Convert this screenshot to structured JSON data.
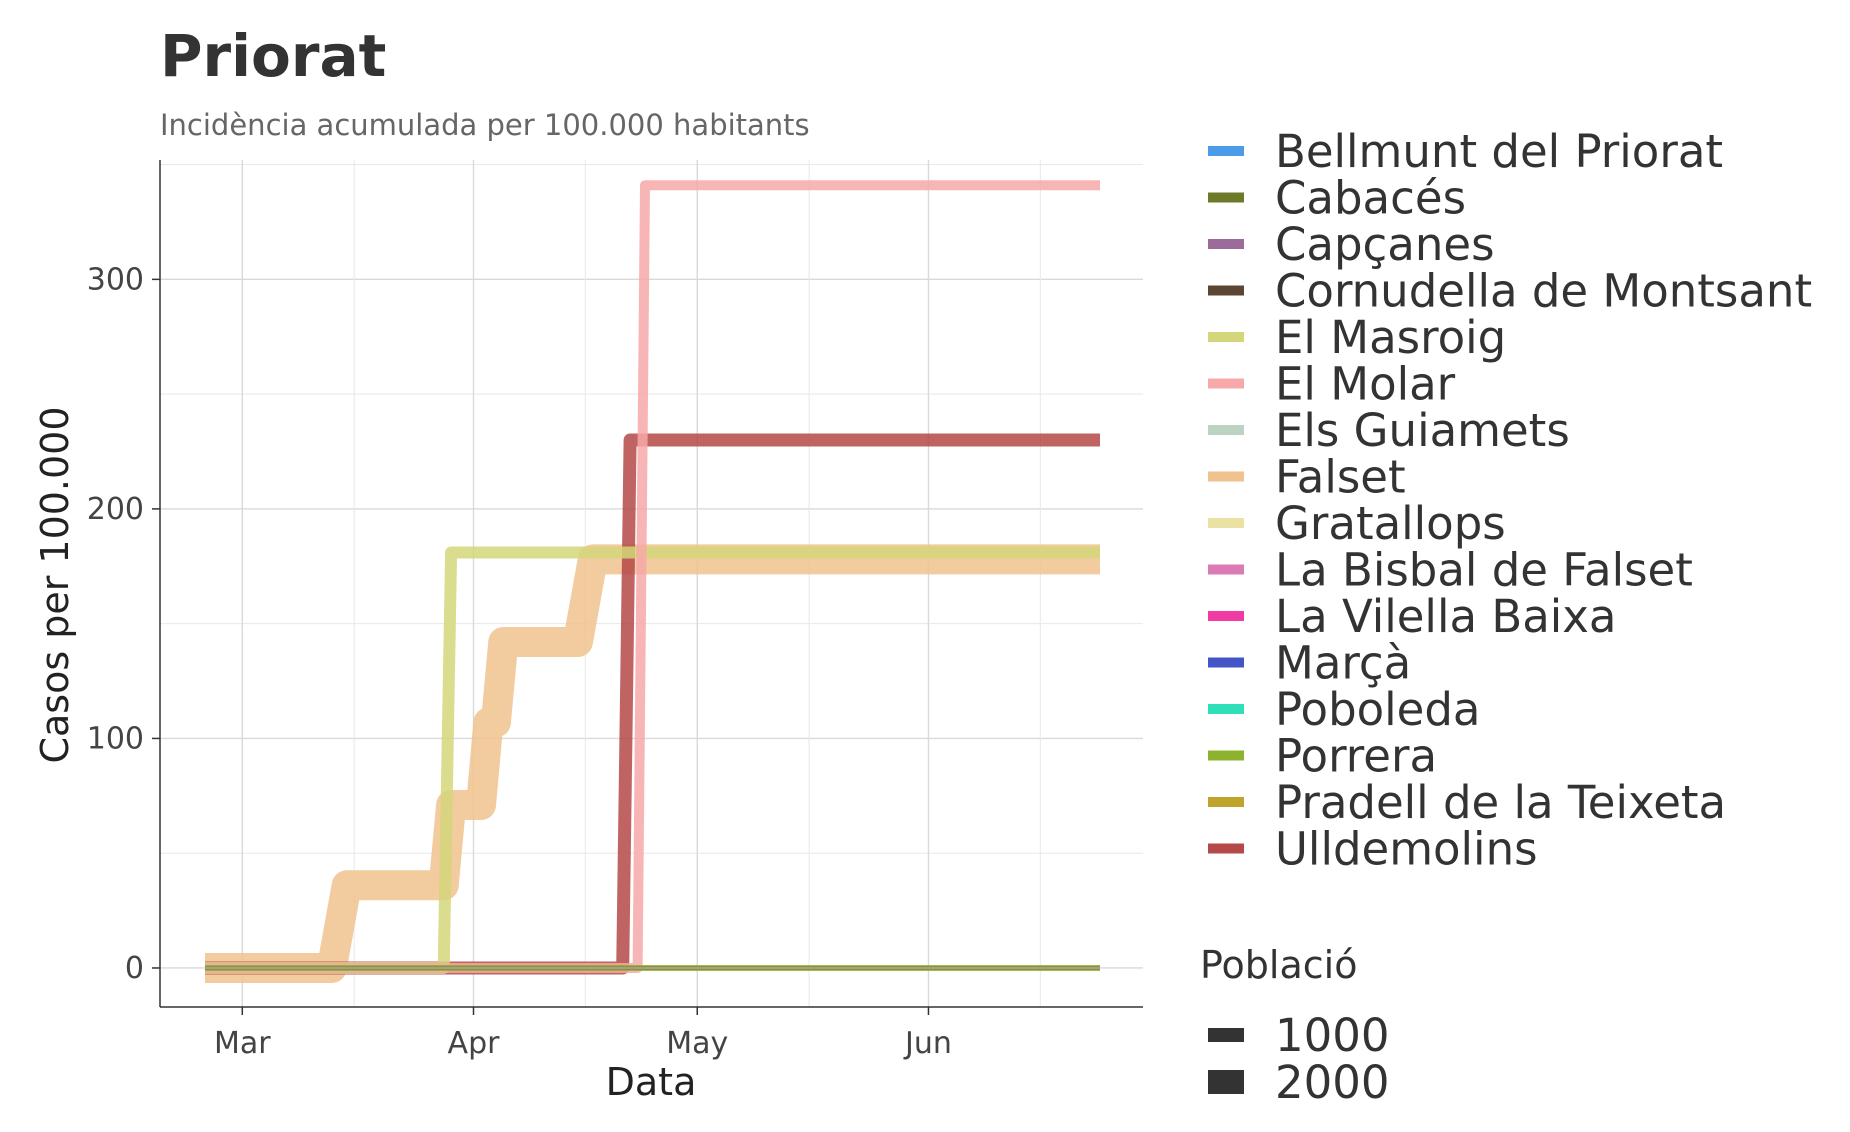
{
  "title": "Priorat",
  "subtitle": "Incidència acumulada per 100.000 habitants",
  "chart_data": {
    "type": "line",
    "title": "Priorat",
    "subtitle": "Incidència acumulada per 100.000 habitants",
    "xlabel": "Data",
    "ylabel": "Casos per 100.000",
    "x_date_range": [
      "2020-02-25",
      "2020-06-24"
    ],
    "x_ticks": [
      {
        "date": "2020-03-01",
        "label": "Mar"
      },
      {
        "date": "2020-04-01",
        "label": "Apr"
      },
      {
        "date": "2020-05-01",
        "label": "May"
      },
      {
        "date": "2020-06-01",
        "label": "Jun"
      }
    ],
    "ylim": [
      -17,
      352
    ],
    "y_ticks": [
      0,
      100,
      200,
      300
    ],
    "grid": true,
    "legend_position": "right",
    "size_legend": {
      "title": "Població",
      "entries": [
        "1000",
        "2000"
      ]
    },
    "series": [
      {
        "name": "Bellmunt del Priorat",
        "color": "#4C9BE8",
        "width": 3,
        "points": [
          [
            "2020-02-25",
            0
          ],
          [
            "2020-06-24",
            0
          ]
        ]
      },
      {
        "name": "Cabacés",
        "color": "#6E7A2A",
        "width": 3,
        "points": [
          [
            "2020-02-25",
            0
          ],
          [
            "2020-06-24",
            0
          ]
        ]
      },
      {
        "name": "Capçanes",
        "color": "#9B6B9A",
        "width": 3,
        "points": [
          [
            "2020-02-25",
            0
          ],
          [
            "2020-06-24",
            0
          ]
        ]
      },
      {
        "name": "Cornudella de Montsant",
        "color": "#5A4632",
        "width": 4,
        "points": [
          [
            "2020-02-25",
            0
          ],
          [
            "2020-06-24",
            0
          ]
        ]
      },
      {
        "name": "El Masroig",
        "color": "#D3D67A",
        "width": 12,
        "points": [
          [
            "2020-02-25",
            0
          ],
          [
            "2020-03-28",
            0
          ],
          [
            "2020-03-29",
            181
          ],
          [
            "2020-06-24",
            181
          ]
        ]
      },
      {
        "name": "El Molar",
        "color": "#F7A8A8",
        "width": 10,
        "points": [
          [
            "2020-02-25",
            0
          ],
          [
            "2020-04-23",
            0
          ],
          [
            "2020-04-24",
            341
          ],
          [
            "2020-06-24",
            341
          ]
        ]
      },
      {
        "name": "Els Guiamets",
        "color": "#BBD4C1",
        "width": 4,
        "points": [
          [
            "2020-02-25",
            0
          ],
          [
            "2020-06-24",
            0
          ]
        ]
      },
      {
        "name": "Falset",
        "color": "#F0C28E",
        "width": 30,
        "points": [
          [
            "2020-02-25",
            0
          ],
          [
            "2020-03-13",
            0
          ],
          [
            "2020-03-15",
            36
          ],
          [
            "2020-03-28",
            36
          ],
          [
            "2020-03-29",
            71
          ],
          [
            "2020-04-02",
            71
          ],
          [
            "2020-04-03",
            107
          ],
          [
            "2020-04-04",
            107
          ],
          [
            "2020-04-05",
            142
          ],
          [
            "2020-04-15",
            142
          ],
          [
            "2020-04-17",
            178
          ],
          [
            "2020-06-24",
            178
          ]
        ]
      },
      {
        "name": "Gratallops",
        "color": "#E9E2A3",
        "width": 4,
        "points": [
          [
            "2020-02-25",
            0
          ],
          [
            "2020-06-24",
            0
          ]
        ]
      },
      {
        "name": "La Bisbal de Falset",
        "color": "#DC7AB5",
        "width": 3,
        "points": [
          [
            "2020-02-25",
            0
          ],
          [
            "2020-06-24",
            0
          ]
        ]
      },
      {
        "name": "La Vilella Baixa",
        "color": "#F03BA5",
        "width": 3,
        "points": [
          [
            "2020-02-25",
            0
          ],
          [
            "2020-06-24",
            0
          ]
        ]
      },
      {
        "name": "Marçà",
        "color": "#4456C7",
        "width": 4,
        "points": [
          [
            "2020-02-25",
            0
          ],
          [
            "2020-06-24",
            0
          ]
        ]
      },
      {
        "name": "Poboleda",
        "color": "#2EDFB8",
        "width": 3,
        "points": [
          [
            "2020-02-25",
            0
          ],
          [
            "2020-06-24",
            0
          ]
        ]
      },
      {
        "name": "Porrera",
        "color": "#8CB22E",
        "width": 6,
        "points": [
          [
            "2020-02-25",
            0
          ],
          [
            "2020-06-24",
            0
          ]
        ]
      },
      {
        "name": "Pradell de la Teixeta",
        "color": "#BFA32B",
        "width": 3,
        "points": [
          [
            "2020-02-25",
            0
          ],
          [
            "2020-06-24",
            0
          ]
        ]
      },
      {
        "name": "Ulldemolins",
        "color": "#B54848",
        "width": 13,
        "points": [
          [
            "2020-02-25",
            0
          ],
          [
            "2020-04-21",
            0
          ],
          [
            "2020-04-22",
            230
          ],
          [
            "2020-06-24",
            230
          ]
        ]
      }
    ]
  }
}
